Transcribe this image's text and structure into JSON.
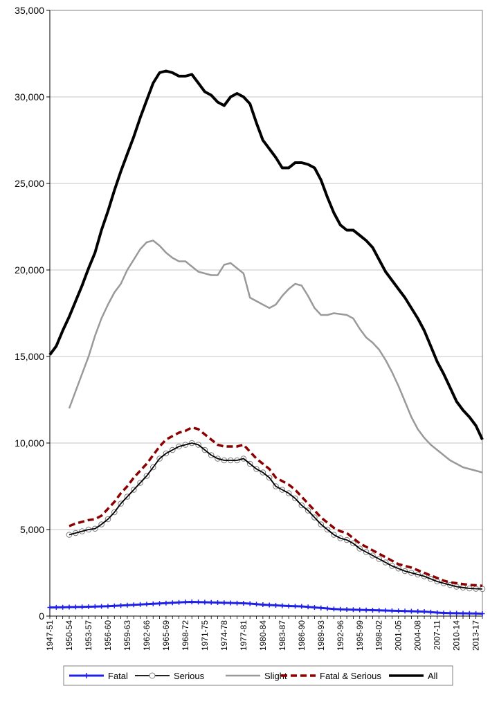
{
  "chart_data": {
    "type": "line",
    "title": "",
    "xlabel": "",
    "ylabel": "",
    "ylim": [
      0,
      35000
    ],
    "yticks": [
      0,
      5000,
      10000,
      15000,
      20000,
      25000,
      30000,
      35000
    ],
    "ytick_labels": [
      "0",
      "5,000",
      "10,000",
      "15,000",
      "20,000",
      "25,000",
      "30,000",
      "35,000"
    ],
    "grid": "horizontal",
    "legend_position": "bottom",
    "categories": [
      "1947-51",
      "1948-52",
      "1949-53",
      "1950-54",
      "1951-55",
      "1952-56",
      "1953-57",
      "1954-58",
      "1955-59",
      "1956-60",
      "1957-61",
      "1958-62",
      "1959-63",
      "1960-64",
      "1961-65",
      "1962-66",
      "1963-67",
      "1964-68",
      "1965-69",
      "1966-70",
      "1967-71",
      "1968-72",
      "1969-73",
      "1970-74",
      "1971-75",
      "1972-76",
      "1973-77",
      "1974-78",
      "1975-79",
      "1976-80",
      "1977-81",
      "1978-82",
      "1979-83",
      "1980-84",
      "1981-85",
      "1982-86",
      "1983-87",
      "1984-88",
      "1985-89",
      "1986-90",
      "1987-91",
      "1988-92",
      "1989-93",
      "1990-94",
      "1991-95",
      "1992-96",
      "1993-97",
      "1994-98",
      "1995-99",
      "1996-00",
      "1997-01",
      "1998-02",
      "1999-03",
      "2000-04",
      "2001-05",
      "2002-06",
      "2003-07",
      "2004-08",
      "2005-09",
      "2006-10",
      "2007-11",
      "2008-12",
      "2009-13",
      "2010-14",
      "2011-15",
      "2012-16",
      "2013-17",
      "2014-18"
    ],
    "x_tick_labels": [
      "1947-51",
      "1950-54",
      "1953-57",
      "1956-60",
      "1959-63",
      "1962-66",
      "1965-69",
      "1968-72",
      "1971-75",
      "1974-78",
      "1977-81",
      "1980-84",
      "1983-87",
      "1986-90",
      "1989-93",
      "1992-96",
      "1995-99",
      "1998-02",
      "2001-05",
      "2004-08",
      "2007-11",
      "2010-14",
      "2013-17"
    ],
    "series": [
      {
        "name": "Fatal",
        "color": "#1f1fe6",
        "style": "solid-plus",
        "values": [
          500,
          505,
          510,
          520,
          525,
          530,
          540,
          550,
          560,
          570,
          590,
          610,
          630,
          650,
          670,
          690,
          710,
          730,
          750,
          770,
          790,
          810,
          820,
          810,
          800,
          790,
          780,
          770,
          760,
          750,
          740,
          720,
          690,
          660,
          640,
          620,
          600,
          580,
          570,
          560,
          530,
          500,
          470,
          440,
          410,
          390,
          380,
          370,
          360,
          350,
          340,
          330,
          320,
          310,
          300,
          290,
          280,
          270,
          260,
          230,
          200,
          180,
          170,
          165,
          160,
          155,
          150,
          140
        ]
      },
      {
        "name": "Serious",
        "color": "#000000",
        "style": "solid-circle",
        "values": [
          null,
          null,
          null,
          4700,
          4800,
          4900,
          5000,
          5050,
          5300,
          5600,
          6000,
          6500,
          6900,
          7300,
          7700,
          8100,
          8600,
          9100,
          9400,
          9600,
          9800,
          9900,
          10000,
          9900,
          9600,
          9300,
          9100,
          9000,
          9000,
          9000,
          9100,
          8800,
          8500,
          8300,
          8000,
          7500,
          7300,
          7100,
          6800,
          6400,
          6100,
          5700,
          5300,
          5000,
          4700,
          4500,
          4400,
          4200,
          3900,
          3700,
          3500,
          3300,
          3100,
          2900,
          2750,
          2600,
          2500,
          2400,
          2300,
          2150,
          2000,
          1900,
          1800,
          1700,
          1650,
          1600,
          1580,
          1570
        ]
      },
      {
        "name": "Slight",
        "color": "#999999",
        "style": "solid",
        "values": [
          null,
          null,
          null,
          12000,
          13000,
          14000,
          15000,
          16200,
          17200,
          18000,
          18700,
          19200,
          20000,
          20600,
          21200,
          21600,
          21700,
          21400,
          21000,
          20700,
          20500,
          20500,
          20200,
          19900,
          19800,
          19700,
          19700,
          20300,
          20400,
          20100,
          19800,
          18400,
          18200,
          18000,
          17800,
          18000,
          18500,
          18900,
          19200,
          19100,
          18500,
          17800,
          17400,
          17400,
          17500,
          17450,
          17400,
          17200,
          16600,
          16100,
          15800,
          15400,
          14800,
          14100,
          13300,
          12400,
          11500,
          10800,
          10300,
          9900,
          9600,
          9300,
          9000,
          8800,
          8600,
          8500,
          8400,
          8300
        ]
      },
      {
        "name": "Fatal & Serious",
        "color": "#8b0000",
        "style": "dashed",
        "values": [
          null,
          null,
          null,
          5200,
          5350,
          5450,
          5550,
          5600,
          5800,
          6200,
          6600,
          7100,
          7500,
          8000,
          8400,
          8800,
          9300,
          9800,
          10200,
          10400,
          10600,
          10700,
          10900,
          10800,
          10500,
          10200,
          9900,
          9800,
          9800,
          9800,
          9900,
          9500,
          9100,
          8800,
          8500,
          8000,
          7800,
          7600,
          7300,
          6900,
          6500,
          6100,
          5700,
          5400,
          5100,
          4900,
          4800,
          4500,
          4200,
          4000,
          3800,
          3600,
          3400,
          3200,
          3000,
          2900,
          2800,
          2650,
          2500,
          2350,
          2200,
          2050,
          1950,
          1900,
          1850,
          1800,
          1780,
          1750
        ]
      },
      {
        "name": "All",
        "color": "#000000",
        "style": "solid-bold",
        "values": [
          15100,
          15600,
          16500,
          17300,
          18200,
          19100,
          20100,
          21000,
          22300,
          23400,
          24600,
          25700,
          26700,
          27700,
          28800,
          29800,
          30800,
          31400,
          31500,
          31400,
          31200,
          31200,
          31300,
          30800,
          30300,
          30100,
          29700,
          29500,
          30000,
          30200,
          30000,
          29600,
          28500,
          27500,
          27000,
          26500,
          25900,
          25900,
          26200,
          26200,
          26100,
          25900,
          25200,
          24200,
          23300,
          22600,
          22300,
          22300,
          22000,
          21700,
          21300,
          20600,
          19900,
          19400,
          18900,
          18400,
          17800,
          17200,
          16500,
          15600,
          14700,
          14000,
          13200,
          12400,
          11900,
          11500,
          11000,
          10200
        ]
      }
    ]
  }
}
